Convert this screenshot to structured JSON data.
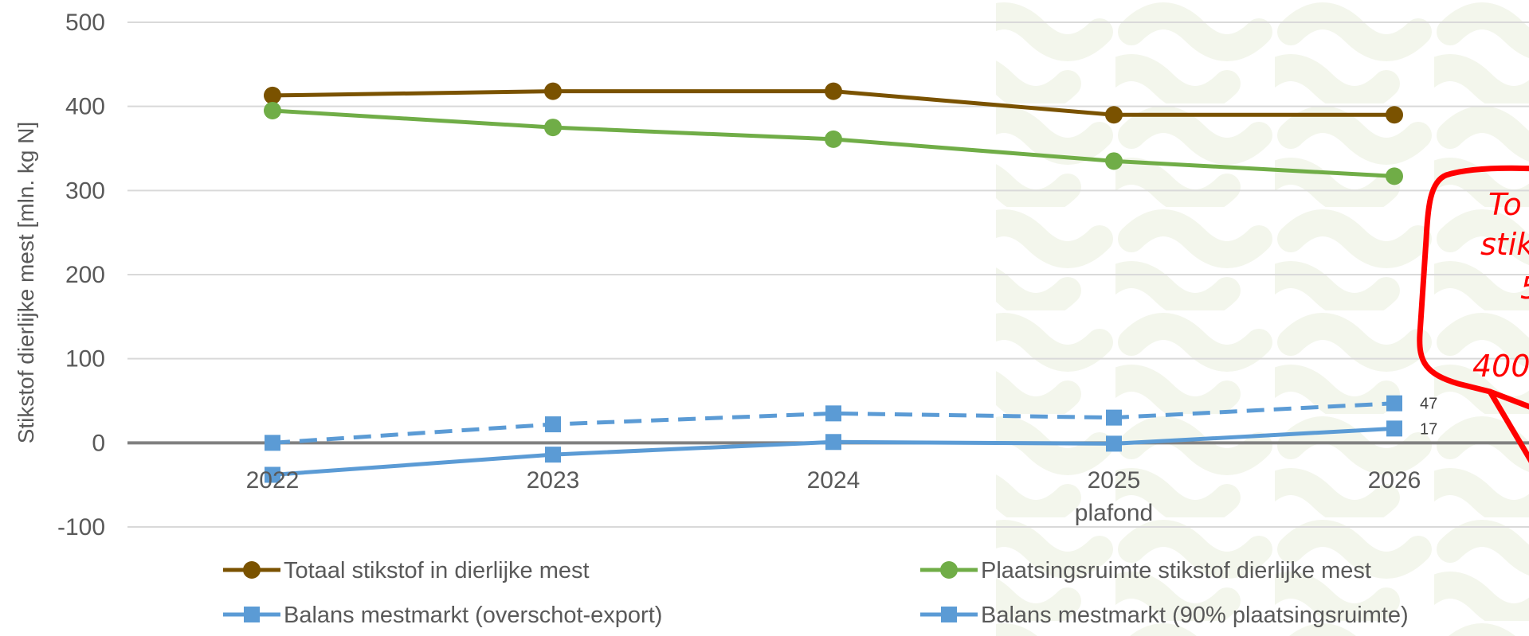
{
  "chart_data": {
    "type": "line",
    "categories": [
      "2022",
      "2023",
      "2024",
      "2025",
      "2026"
    ],
    "x_sublabels": [
      "",
      "",
      "",
      "plafond",
      ""
    ],
    "ylabel": "Stikstof dierlijke mest [mln. kg N]",
    "ylim": [
      -100,
      500
    ],
    "yticks": [
      "500",
      "400",
      "300",
      "200",
      "100",
      "0",
      "-100"
    ],
    "grid": true,
    "legend_position": "bottom",
    "series": [
      {
        "name": "Totaal stikstof in dierlijke mest",
        "color": "#7a5200",
        "marker": "circle",
        "dash": false,
        "values": [
          413,
          418,
          418,
          390,
          390
        ],
        "data_labels": []
      },
      {
        "name": "Plaatsingsruimte stikstof dierlijke mest",
        "color": "#70ad47",
        "marker": "circle",
        "dash": false,
        "values": [
          395,
          375,
          361,
          335,
          317
        ],
        "data_labels": []
      },
      {
        "name": "Balans mestmarkt (overschot-export)",
        "color": "#5b9bd5",
        "marker": "square",
        "dash": false,
        "values": [
          -38,
          -14,
          1,
          -1,
          17
        ],
        "data_labels": [
          "",
          "",
          "",
          "",
          "17"
        ]
      },
      {
        "name": "Balans mestmarkt (90% plaatsingsruimte)",
        "color": "#5b9bd5",
        "marker": "square",
        "dash": true,
        "values": [
          0,
          22,
          35,
          30,
          47
        ],
        "data_labels": [
          "",
          "",
          "",
          "",
          "47"
        ]
      }
    ]
  },
  "callout": {
    "color": "#ff0000",
    "lines": [
      "To",
      "stik",
      "5",
      "400"
    ]
  }
}
